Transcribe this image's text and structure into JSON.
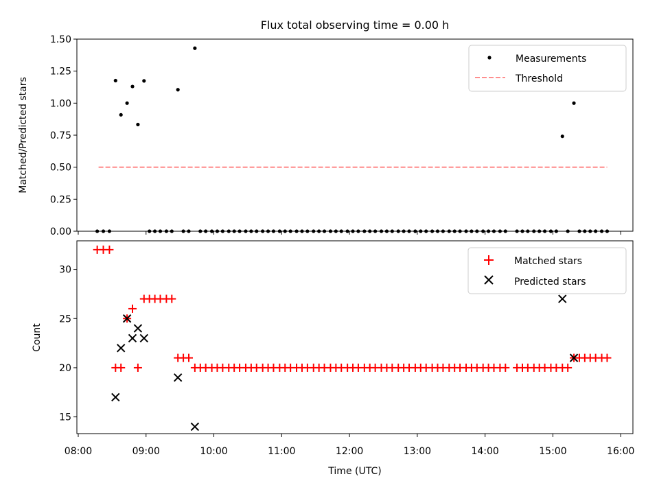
{
  "title": "Flux total observing time = 0.00 h",
  "colors": {
    "matched": "#ff0000",
    "predicted": "#000000",
    "threshold": "#ff7f7f",
    "measurement": "#000000"
  },
  "chart_data": [
    {
      "type": "scatter",
      "ylabel": "Matched/Predicted stars",
      "xlabel": "",
      "xlim": [
        7.98,
        16.18
      ],
      "ylim": [
        0,
        1.5
      ],
      "yticks": [
        0.0,
        0.25,
        0.5,
        0.75,
        1.0,
        1.25,
        1.5
      ],
      "yticklabels": [
        "0.00",
        "0.25",
        "0.50",
        "0.75",
        "1.00",
        "1.25",
        "1.50"
      ],
      "legend": {
        "position": "top-right",
        "entries": [
          "Measurements",
          "Threshold"
        ]
      },
      "threshold": {
        "name": "Threshold",
        "x": [
          8.3,
          15.8
        ],
        "y": 0.5
      },
      "series": [
        {
          "name": "Measurements",
          "points": [
            [
              8.28,
              0
            ],
            [
              8.37,
              0
            ],
            [
              8.46,
              0
            ],
            [
              8.55,
              1.176
            ],
            [
              8.63,
              0.909
            ],
            [
              8.72,
              1.0
            ],
            [
              8.8,
              1.13
            ],
            [
              8.88,
              0.833
            ],
            [
              8.97,
              1.174
            ],
            [
              9.05,
              0
            ],
            [
              9.13,
              0
            ],
            [
              9.21,
              0
            ],
            [
              9.3,
              0
            ],
            [
              9.38,
              0
            ],
            [
              9.47,
              1.105
            ],
            [
              9.55,
              0
            ],
            [
              9.63,
              0
            ],
            [
              9.72,
              1.429
            ],
            [
              9.8,
              0
            ],
            [
              9.88,
              0
            ],
            [
              9.97,
              0
            ],
            [
              10.05,
              0
            ],
            [
              10.13,
              0
            ],
            [
              10.22,
              0
            ],
            [
              10.3,
              0
            ],
            [
              10.38,
              0
            ],
            [
              10.47,
              0
            ],
            [
              10.55,
              0
            ],
            [
              10.63,
              0
            ],
            [
              10.72,
              0
            ],
            [
              10.8,
              0
            ],
            [
              10.88,
              0
            ],
            [
              10.97,
              0
            ],
            [
              11.05,
              0
            ],
            [
              11.13,
              0
            ],
            [
              11.22,
              0
            ],
            [
              11.3,
              0
            ],
            [
              11.38,
              0
            ],
            [
              11.47,
              0
            ],
            [
              11.55,
              0
            ],
            [
              11.63,
              0
            ],
            [
              11.72,
              0
            ],
            [
              11.8,
              0
            ],
            [
              11.88,
              0
            ],
            [
              11.97,
              0
            ],
            [
              12.05,
              0
            ],
            [
              12.13,
              0
            ],
            [
              12.22,
              0
            ],
            [
              12.3,
              0
            ],
            [
              12.38,
              0
            ],
            [
              12.47,
              0
            ],
            [
              12.55,
              0
            ],
            [
              12.63,
              0
            ],
            [
              12.72,
              0
            ],
            [
              12.8,
              0
            ],
            [
              12.88,
              0
            ],
            [
              12.97,
              0
            ],
            [
              13.05,
              0
            ],
            [
              13.13,
              0
            ],
            [
              13.22,
              0
            ],
            [
              13.3,
              0
            ],
            [
              13.38,
              0
            ],
            [
              13.47,
              0
            ],
            [
              13.55,
              0
            ],
            [
              13.63,
              0
            ],
            [
              13.72,
              0
            ],
            [
              13.8,
              0
            ],
            [
              13.88,
              0
            ],
            [
              13.97,
              0
            ],
            [
              14.05,
              0
            ],
            [
              14.13,
              0
            ],
            [
              14.22,
              0
            ],
            [
              14.3,
              0
            ],
            [
              14.47,
              0
            ],
            [
              14.55,
              0
            ],
            [
              14.63,
              0
            ],
            [
              14.72,
              0
            ],
            [
              14.8,
              0
            ],
            [
              14.88,
              0
            ],
            [
              14.97,
              0
            ],
            [
              15.05,
              0
            ],
            [
              15.14,
              0.741
            ],
            [
              15.22,
              0
            ],
            [
              15.31,
              1.0
            ],
            [
              15.39,
              0
            ],
            [
              15.47,
              0
            ],
            [
              15.55,
              0
            ],
            [
              15.63,
              0
            ],
            [
              15.72,
              0
            ],
            [
              15.8,
              0
            ]
          ]
        }
      ]
    },
    {
      "type": "scatter",
      "ylabel": "Count",
      "xlabel": "Time (UTC)",
      "xlim": [
        7.98,
        16.18
      ],
      "ylim": [
        13.3,
        32.9
      ],
      "yticks": [
        15,
        20,
        25,
        30
      ],
      "yticklabels": [
        "15",
        "20",
        "25",
        "30"
      ],
      "xticks": [
        8,
        9,
        10,
        11,
        12,
        13,
        14,
        15,
        16
      ],
      "xticklabels": [
        "08:00",
        "09:00",
        "10:00",
        "11:00",
        "12:00",
        "13:00",
        "14:00",
        "15:00",
        "16:00"
      ],
      "legend": {
        "position": "top-right",
        "entries": [
          "Matched stars",
          "Predicted stars"
        ]
      },
      "series": [
        {
          "name": "Matched stars",
          "marker": "plus",
          "points": [
            [
              8.28,
              32
            ],
            [
              8.37,
              32
            ],
            [
              8.46,
              32
            ],
            [
              8.55,
              20
            ],
            [
              8.63,
              20
            ],
            [
              8.72,
              25
            ],
            [
              8.8,
              26
            ],
            [
              8.88,
              20
            ],
            [
              8.97,
              27
            ],
            [
              9.05,
              27
            ],
            [
              9.13,
              27
            ],
            [
              9.21,
              27
            ],
            [
              9.3,
              27
            ],
            [
              9.38,
              27
            ],
            [
              9.47,
              21
            ],
            [
              9.55,
              21
            ],
            [
              9.63,
              21
            ],
            [
              9.72,
              20
            ],
            [
              9.8,
              20
            ],
            [
              9.88,
              20
            ],
            [
              9.97,
              20
            ],
            [
              10.05,
              20
            ],
            [
              10.13,
              20
            ],
            [
              10.22,
              20
            ],
            [
              10.3,
              20
            ],
            [
              10.38,
              20
            ],
            [
              10.47,
              20
            ],
            [
              10.55,
              20
            ],
            [
              10.63,
              20
            ],
            [
              10.72,
              20
            ],
            [
              10.8,
              20
            ],
            [
              10.88,
              20
            ],
            [
              10.97,
              20
            ],
            [
              11.05,
              20
            ],
            [
              11.13,
              20
            ],
            [
              11.22,
              20
            ],
            [
              11.3,
              20
            ],
            [
              11.38,
              20
            ],
            [
              11.47,
              20
            ],
            [
              11.55,
              20
            ],
            [
              11.63,
              20
            ],
            [
              11.72,
              20
            ],
            [
              11.8,
              20
            ],
            [
              11.88,
              20
            ],
            [
              11.97,
              20
            ],
            [
              12.05,
              20
            ],
            [
              12.13,
              20
            ],
            [
              12.22,
              20
            ],
            [
              12.3,
              20
            ],
            [
              12.38,
              20
            ],
            [
              12.47,
              20
            ],
            [
              12.55,
              20
            ],
            [
              12.63,
              20
            ],
            [
              12.72,
              20
            ],
            [
              12.8,
              20
            ],
            [
              12.88,
              20
            ],
            [
              12.97,
              20
            ],
            [
              13.05,
              20
            ],
            [
              13.13,
              20
            ],
            [
              13.22,
              20
            ],
            [
              13.3,
              20
            ],
            [
              13.38,
              20
            ],
            [
              13.47,
              20
            ],
            [
              13.55,
              20
            ],
            [
              13.63,
              20
            ],
            [
              13.72,
              20
            ],
            [
              13.8,
              20
            ],
            [
              13.88,
              20
            ],
            [
              13.97,
              20
            ],
            [
              14.05,
              20
            ],
            [
              14.13,
              20
            ],
            [
              14.22,
              20
            ],
            [
              14.3,
              20
            ],
            [
              14.47,
              20
            ],
            [
              14.55,
              20
            ],
            [
              14.63,
              20
            ],
            [
              14.72,
              20
            ],
            [
              14.8,
              20
            ],
            [
              14.88,
              20
            ],
            [
              14.97,
              20
            ],
            [
              15.05,
              20
            ],
            [
              15.14,
              20
            ],
            [
              15.22,
              20
            ],
            [
              15.31,
              21
            ],
            [
              15.39,
              21
            ],
            [
              15.47,
              21
            ],
            [
              15.55,
              21
            ],
            [
              15.63,
              21
            ],
            [
              15.72,
              21
            ],
            [
              15.8,
              21
            ]
          ]
        },
        {
          "name": "Predicted stars",
          "marker": "x",
          "points": [
            [
              8.55,
              17
            ],
            [
              8.63,
              22
            ],
            [
              8.72,
              25
            ],
            [
              8.8,
              23
            ],
            [
              8.88,
              24
            ],
            [
              8.97,
              23
            ],
            [
              9.47,
              19
            ],
            [
              9.72,
              14
            ],
            [
              15.14,
              27
            ],
            [
              15.31,
              21
            ]
          ]
        }
      ]
    }
  ]
}
